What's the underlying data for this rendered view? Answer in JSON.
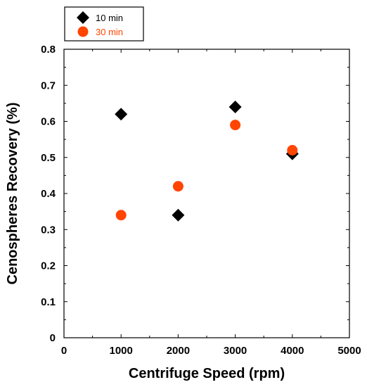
{
  "chart_data": {
    "type": "scatter",
    "xlabel": "Centrifuge Speed (rpm)",
    "ylabel": "Cenospheres Recovery (%)",
    "xlim": [
      0,
      5000
    ],
    "ylim": [
      0,
      0.8
    ],
    "x_ticks": [
      0,
      1000,
      2000,
      3000,
      4000,
      5000
    ],
    "y_ticks": [
      0,
      0.1,
      0.2,
      0.3,
      0.4,
      0.5,
      0.6,
      0.7,
      0.8
    ],
    "x_tick_labels": [
      "0",
      "1000",
      "2000",
      "3000",
      "4000",
      "5000"
    ],
    "y_tick_labels": [
      "0",
      "0.1",
      "0.2",
      "0.3",
      "0.4",
      "0.5",
      "0.6",
      "0.7",
      "0.8"
    ],
    "grid": false,
    "legend_placement": "top-left",
    "series": [
      {
        "name": "10 min",
        "marker": "diamond",
        "color": "#000000",
        "x": [
          1000,
          2000,
          3000,
          4000
        ],
        "y": [
          0.62,
          0.34,
          0.64,
          0.51
        ]
      },
      {
        "name": "30 min",
        "marker": "circle",
        "color": "#ff4500",
        "x": [
          1000,
          2000,
          3000,
          4000
        ],
        "y": [
          0.34,
          0.42,
          0.59,
          0.52
        ]
      }
    ]
  }
}
